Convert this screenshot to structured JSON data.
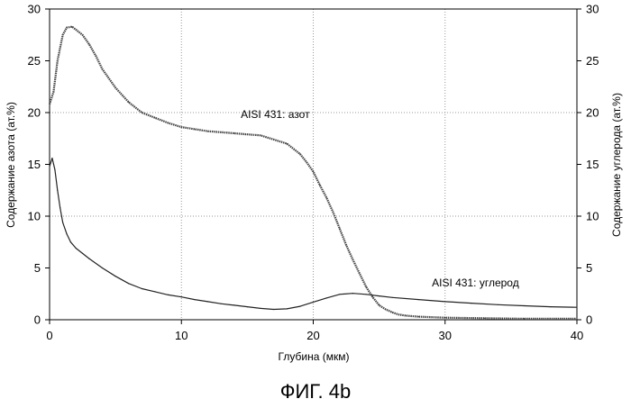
{
  "chart_data": {
    "type": "line",
    "xlabel": "Глубина (мкм)",
    "ylabel_left": "Содержание азота (ат.%)",
    "ylabel_right": "Содержание углерода (ат.%)",
    "xlim": [
      0,
      40
    ],
    "ylim": [
      0,
      30
    ],
    "ylim_right": [
      0,
      30
    ],
    "x_ticks": [
      "0",
      "10",
      "20",
      "30",
      "40"
    ],
    "y_ticks": [
      "0",
      "5",
      "10",
      "15",
      "20",
      "25",
      "30"
    ],
    "y_ticks_right": [
      "0",
      "5",
      "10",
      "15",
      "20",
      "25",
      "30"
    ],
    "grid": "dotted lines at x=10, 20, 30 and y=10, 20",
    "series": [
      {
        "name": "AISI 431: азот",
        "axis": "left",
        "color": "#444444",
        "x": [
          0,
          0.3,
          0.6,
          1.0,
          1.3,
          1.7,
          2.0,
          2.5,
          3.0,
          3.5,
          4.0,
          5.0,
          6.0,
          7.0,
          8.0,
          9.0,
          10.0,
          11.0,
          12.0,
          13.0,
          14.0,
          15.0,
          16.0,
          17.0,
          18.0,
          19.0,
          19.5,
          20.0,
          20.5,
          21.0,
          21.5,
          22.0,
          22.5,
          23.0,
          23.5,
          24.0,
          24.5,
          25.0,
          25.5,
          26.0,
          26.5,
          27.0,
          28.0,
          30.0,
          33.0,
          36.0,
          40.0
        ],
        "y": [
          20.8,
          22.0,
          25.0,
          27.5,
          28.2,
          28.3,
          28.0,
          27.5,
          26.6,
          25.5,
          24.2,
          22.4,
          21.0,
          20.0,
          19.5,
          19.0,
          18.6,
          18.4,
          18.2,
          18.1,
          18.0,
          17.9,
          17.8,
          17.4,
          17.0,
          16.0,
          15.2,
          14.3,
          13.0,
          11.8,
          10.4,
          8.8,
          7.2,
          5.8,
          4.5,
          3.2,
          2.2,
          1.4,
          1.0,
          0.7,
          0.5,
          0.4,
          0.3,
          0.2,
          0.15,
          0.1,
          0.1
        ]
      },
      {
        "name": "AISI 431: углерод",
        "axis": "right",
        "color": "#222222",
        "x": [
          0,
          0.2,
          0.4,
          0.6,
          0.8,
          1.0,
          1.3,
          1.6,
          2.0,
          2.5,
          3.0,
          4.0,
          5.0,
          6.0,
          7.0,
          8.0,
          9.0,
          10.0,
          11.0,
          12.0,
          13.0,
          14.0,
          15.0,
          16.0,
          17.0,
          18.0,
          19.0,
          20.0,
          21.0,
          22.0,
          23.0,
          24.0,
          25.0,
          26.0,
          28.0,
          30.0,
          32.0,
          34.0,
          36.0,
          38.0,
          40.0
        ],
        "y": [
          14.8,
          15.6,
          14.5,
          12.5,
          10.8,
          9.4,
          8.3,
          7.5,
          6.9,
          6.4,
          5.9,
          5.0,
          4.2,
          3.5,
          3.0,
          2.7,
          2.4,
          2.2,
          1.95,
          1.75,
          1.55,
          1.4,
          1.25,
          1.1,
          1.0,
          1.05,
          1.3,
          1.7,
          2.1,
          2.45,
          2.55,
          2.45,
          2.3,
          2.15,
          1.95,
          1.75,
          1.6,
          1.45,
          1.35,
          1.25,
          1.2
        ]
      }
    ],
    "annotations": [
      {
        "text": "AISI 431: азот",
        "x": 14.5,
        "y": 19.5
      },
      {
        "text": "AISI 431: углерод",
        "x": 29.0,
        "y": 3.2
      }
    ]
  },
  "caption": "ФИГ. 4b"
}
